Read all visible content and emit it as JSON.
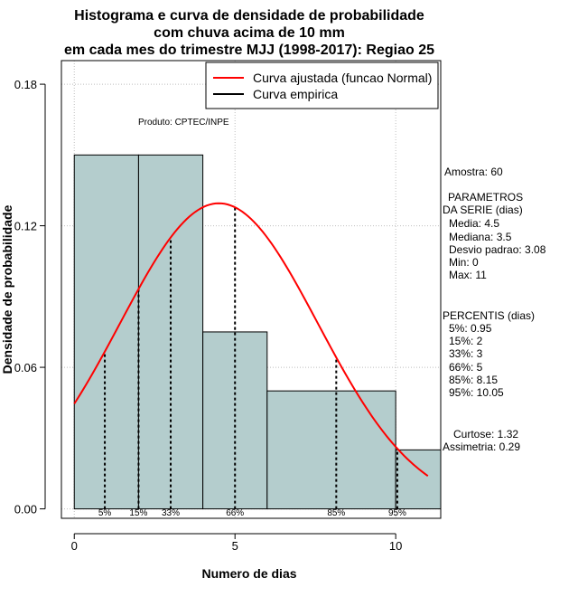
{
  "chart_data": {
    "type": "bar",
    "title_lines": [
      "Histograma e curva de densidade de probabilidade",
      "com chuva acima de 10 mm",
      "em cada mes do trimestre MJJ (1998-2017): Regiao 25"
    ],
    "xlabel": "Numero de dias",
    "ylabel": "Densidade de probabilidade",
    "xlim": [
      -0.4,
      11.4
    ],
    "ylim": [
      -0.004,
      0.19
    ],
    "x_ticks": [
      0,
      5,
      10
    ],
    "x_tick_labels": [
      "0",
      "5",
      "10"
    ],
    "y_ticks": [
      0.0,
      0.06,
      0.12,
      0.18
    ],
    "y_tick_labels": [
      "0.00",
      "0.06",
      "0.12",
      "0.18"
    ],
    "grid_x": [
      0,
      5,
      10
    ],
    "grid_y": [
      0.0,
      0.06,
      0.12,
      0.18
    ],
    "bins": [
      {
        "x0": 0,
        "x1": 2,
        "density": 0.15
      },
      {
        "x0": 2,
        "x1": 4,
        "density": 0.15
      },
      {
        "x0": 4,
        "x1": 6,
        "density": 0.075
      },
      {
        "x0": 6,
        "x1": 10,
        "density": 0.05
      },
      {
        "x0": 10,
        "x1": 12,
        "density": 0.025
      }
    ],
    "fit_curve": {
      "name": "Curva ajustada (funcao Normal)",
      "distribution": "normal",
      "mean": 4.5,
      "sd": 3.08,
      "x_range": [
        0,
        11
      ],
      "color": "#ff0000"
    },
    "empirical_curve": {
      "name": "Curva empirica",
      "color": "#000000"
    },
    "percentile_lines": [
      {
        "label": "5%",
        "x": 0.95
      },
      {
        "label": "15%",
        "x": 2
      },
      {
        "label": "33%",
        "x": 3
      },
      {
        "label": "66%",
        "x": 5
      },
      {
        "label": "85%",
        "x": 8.15
      },
      {
        "label": "95%",
        "x": 10.05
      }
    ],
    "legend_position": "top-right",
    "annotation": "Produto: CPTEC/INPE",
    "bar_color": "#b4cdcd"
  },
  "stats_panel": {
    "amostra": "Amostra: 60",
    "params_title_1": "PARAMETROS",
    "params_title_2": "DA SERIE (dias)",
    "params": [
      "Media: 4.5",
      "Mediana: 3.5",
      "Desvio padrao: 3.08",
      "Min: 0",
      "Max: 11"
    ],
    "percentis_title": "PERCENTIS (dias)",
    "percentis": [
      "5%: 0.95",
      "15%: 2",
      "33%: 3",
      "66%: 5",
      "85%: 8.15",
      "95%: 10.05"
    ],
    "curtose": "Curtose: 1.32",
    "assimetria": "Assimetria: 0.29"
  }
}
